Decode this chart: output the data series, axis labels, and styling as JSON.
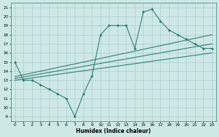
{
  "bg_color": "#cde8e5",
  "grid_color": "#aacccc",
  "line_color": "#2a7a6e",
  "marker_color": "#2a7a6e",
  "xlabel": "Humidex (Indice chaleur)",
  "ylabel_values": [
    9,
    10,
    11,
    12,
    13,
    14,
    15,
    16,
    17,
    18,
    19,
    20,
    21
  ],
  "xlabel_values": [
    0,
    1,
    2,
    3,
    4,
    5,
    6,
    7,
    8,
    9,
    10,
    11,
    12,
    13,
    14,
    15,
    16,
    17,
    18,
    19,
    20,
    21,
    22,
    23
  ],
  "xlim": [
    -0.5,
    23.5
  ],
  "ylim": [
    8.5,
    21.5
  ],
  "line1_x": [
    0,
    1,
    2,
    3,
    4,
    5,
    6,
    7,
    8,
    9,
    10,
    11,
    12,
    13,
    14,
    15,
    16,
    17,
    18,
    19,
    20,
    21,
    22,
    23
  ],
  "line1_y": [
    15,
    13,
    13,
    12.5,
    12,
    11.5,
    11,
    9,
    11.5,
    13.5,
    18,
    19,
    19,
    19,
    16.5,
    20.5,
    20.8,
    19.5,
    18.5,
    18,
    17.5,
    17,
    16.5,
    16.5
  ],
  "line2_x": [
    0,
    23
  ],
  "line2_y": [
    13.0,
    16.0
  ],
  "line3_x": [
    0,
    23
  ],
  "line3_y": [
    13.2,
    17.0
  ],
  "line4_x": [
    0,
    23
  ],
  "line4_y": [
    13.4,
    18.0
  ]
}
